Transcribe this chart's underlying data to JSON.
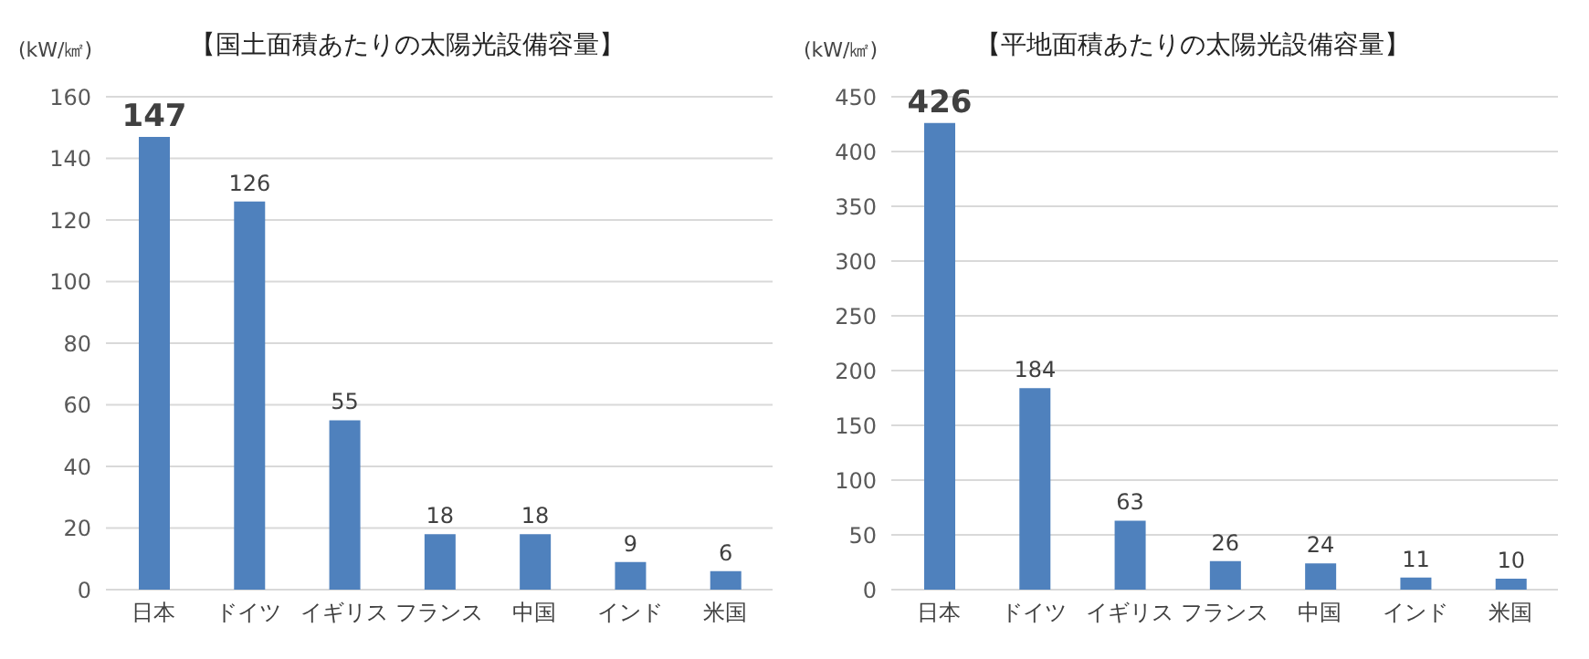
{
  "chart_data": [
    {
      "type": "bar",
      "title": "【国土面積あたりの太陽光設備容量】",
      "ylabel": "(kW/㎢)",
      "categories": [
        "日本",
        "ドイツ",
        "イギリス",
        "フランス",
        "中国",
        "インド",
        "米国"
      ],
      "values": [
        147,
        126,
        55,
        18,
        18,
        9,
        6
      ],
      "color": "#4f81bd",
      "ylim": [
        0,
        160
      ],
      "yticks": [
        0,
        20,
        40,
        60,
        80,
        100,
        120,
        140,
        160
      ],
      "grid": "y",
      "data_labels": true
    },
    {
      "type": "bar",
      "title": "【平地面積あたりの太陽光設備容量】",
      "ylabel": "(kW/㎢)",
      "categories": [
        "日本",
        "ドイツ",
        "イギリス",
        "フランス",
        "中国",
        "インド",
        "米国"
      ],
      "values": [
        426,
        184,
        63,
        26,
        24,
        11,
        10
      ],
      "color": "#4f81bd",
      "ylim": [
        0,
        450
      ],
      "yticks": [
        0,
        50,
        100,
        150,
        200,
        250,
        300,
        350,
        400,
        450
      ],
      "grid": "y",
      "data_labels": true
    }
  ]
}
